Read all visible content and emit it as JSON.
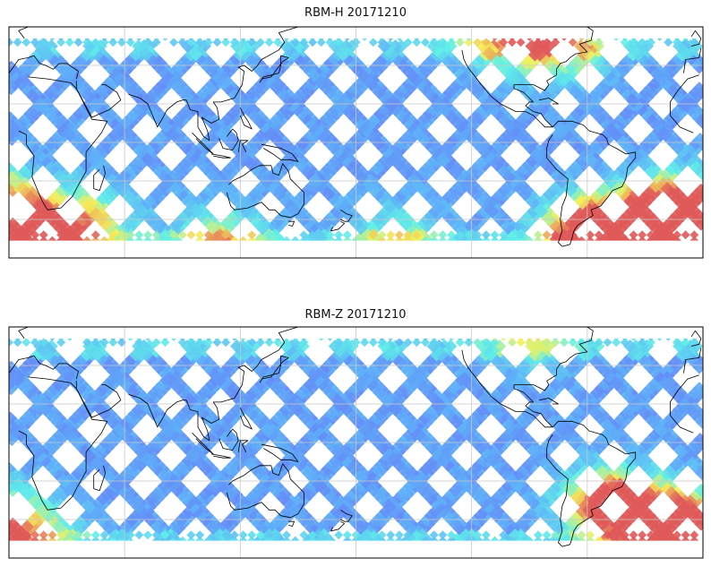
{
  "panels": [
    {
      "title": "RBM-H 20171210",
      "palette": {
        "low": "#6a6cf5",
        "mid": "#5fb0f8",
        "cyan": "#5ff0e8",
        "yellow": "#f5f05a",
        "high": "#e05a5a"
      },
      "hotspots": [
        {
          "lon": 10,
          "lat": -45,
          "intensity": 0.95
        },
        {
          "lon": 40,
          "lat": -40,
          "intensity": 0.55
        },
        {
          "lon": 300,
          "lat": -45,
          "intensity": 1.0
        },
        {
          "lon": 330,
          "lat": -40,
          "intensity": 0.85
        },
        {
          "lon": 350,
          "lat": -30,
          "intensity": 0.6
        },
        {
          "lon": 285,
          "lat": 50,
          "intensity": 0.6
        },
        {
          "lon": 255,
          "lat": 55,
          "intensity": 0.45
        },
        {
          "lon": 110,
          "lat": -50,
          "intensity": 0.5
        },
        {
          "lon": 200,
          "lat": -50,
          "intensity": 0.4
        }
      ]
    },
    {
      "title": "RBM-Z 20171210",
      "palette": {
        "low": "#6a6cf5",
        "mid": "#5fb0f8",
        "cyan": "#5ff0e8",
        "yellow": "#f5f05a",
        "high": "#e05a5a"
      },
      "hotspots": [
        {
          "lon": 310,
          "lat": -30,
          "intensity": 0.85
        },
        {
          "lon": 330,
          "lat": -40,
          "intensity": 0.7
        },
        {
          "lon": 350,
          "lat": -40,
          "intensity": 0.5
        },
        {
          "lon": 10,
          "lat": -45,
          "intensity": 0.45
        },
        {
          "lon": 270,
          "lat": 55,
          "intensity": 0.35
        }
      ]
    }
  ]
}
